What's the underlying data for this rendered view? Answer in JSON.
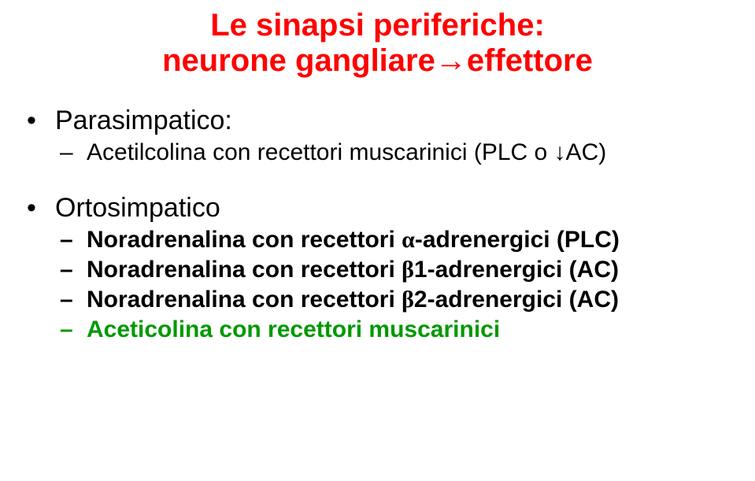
{
  "title": {
    "line1": "Le sinapsi periferiche:",
    "line2": "neurone gangliare→effettore",
    "color": "#ff0000",
    "fontSize": 40,
    "fontWeight": "bold"
  },
  "blocks": [
    {
      "heading": {
        "text": "Parasimpatico:",
        "color": "#000000",
        "fontSize": 34,
        "fontWeight": "normal"
      },
      "items": [
        {
          "segments": [
            {
              "text": "Acetilcolina con recettori muscarinici (PLC o ↓AC)",
              "color": "#000000"
            }
          ],
          "fontSize": 30,
          "fontWeight": "normal"
        }
      ]
    },
    {
      "heading": {
        "text": "Ortosimpatico",
        "color": "#000000",
        "fontSize": 34,
        "fontWeight": "normal"
      },
      "items": [
        {
          "segments": [
            {
              "text": "Noradrenalina con recettori ",
              "color": "#000000"
            },
            {
              "text": "α",
              "color": "#000000",
              "greek": true
            },
            {
              "text": "-adrenergici (PLC)",
              "color": "#000000"
            }
          ],
          "fontSize": 30,
          "fontWeight": "bold"
        },
        {
          "segments": [
            {
              "text": "Noradrenalina con recettori ",
              "color": "#000000"
            },
            {
              "text": "β",
              "color": "#000000",
              "greek": true
            },
            {
              "text": "1-adrenergici (AC)",
              "color": "#000000"
            }
          ],
          "fontSize": 30,
          "fontWeight": "bold"
        },
        {
          "segments": [
            {
              "text": "Noradrenalina con recettori ",
              "color": "#000000"
            },
            {
              "text": "β",
              "color": "#000000",
              "greek": true
            },
            {
              "text": "2-adrenergici (AC)",
              "color": "#000000"
            }
          ],
          "fontSize": 30,
          "fontWeight": "bold"
        },
        {
          "segments": [
            {
              "text": "Aceticolina con recettori muscarinici",
              "color": "#009900"
            }
          ],
          "fontSize": 30,
          "fontWeight": "bold"
        }
      ]
    }
  ]
}
